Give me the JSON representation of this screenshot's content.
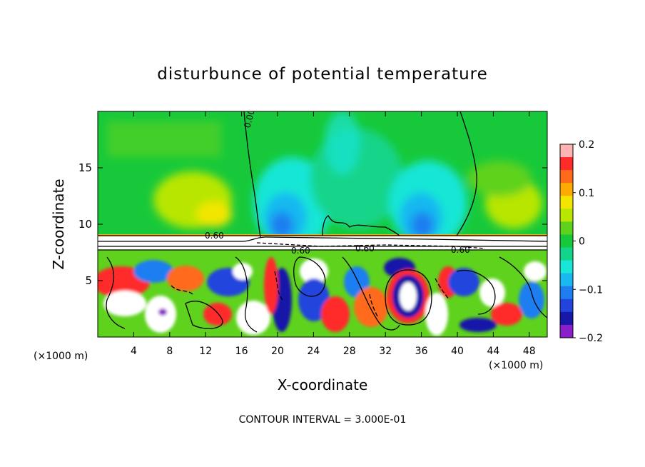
{
  "chart_data": {
    "type": "heatmap",
    "title": "disturbunce of potential temperature",
    "xlabel": "X-coordinate",
    "ylabel": "Z-coordinate",
    "x_unit": "(×1000 m)",
    "y_unit": "(×1000 m)",
    "xlim": [
      0,
      50
    ],
    "ylim": [
      0,
      20
    ],
    "x_ticks": [
      4,
      8,
      12,
      16,
      20,
      24,
      28,
      32,
      36,
      40,
      44,
      48
    ],
    "y_ticks": [
      5,
      10,
      15
    ],
    "colorbar": {
      "range": [
        -0.2,
        0.2
      ],
      "tick_values": [
        0.2,
        0.1,
        0,
        -0.1,
        -0.2
      ],
      "tick_labels": [
        "0.2",
        "0.1",
        "0",
        "−0.1",
        "−0.2"
      ],
      "colors": [
        "#ffb3b3",
        "#ff2a2a",
        "#ff6a1a",
        "#ffaa00",
        "#f2e600",
        "#b8e600",
        "#5fd21e",
        "#17c93a",
        "#12d48a",
        "#18e6d6",
        "#19b8f0",
        "#1e7ef0",
        "#2244dd",
        "#1818a8",
        "#8a1ec8"
      ]
    },
    "contour_labels": [
      "0.00",
      "0.60",
      "0.60",
      "0.60",
      "0.60"
    ],
    "footer": "CONTOUR INTERVAL = 3.000E-01"
  }
}
